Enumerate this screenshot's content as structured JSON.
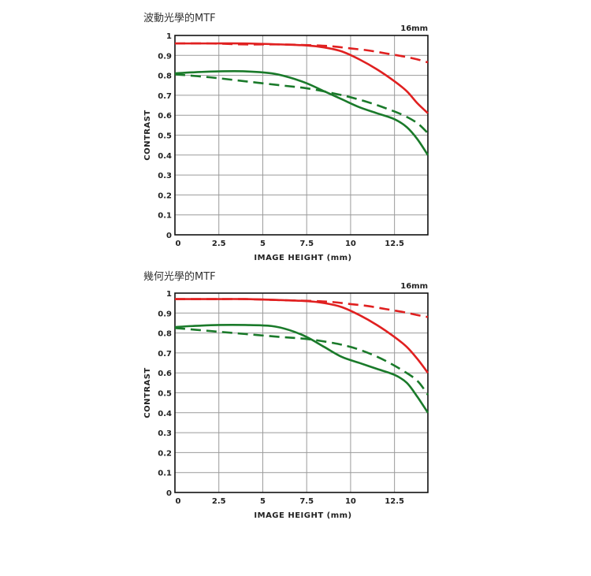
{
  "chart_data": [
    {
      "type": "line",
      "title": "波動光學的MTF",
      "corner_label": "16mm",
      "xlabel": "IMAGE HEIGHT (mm)",
      "ylabel": "CONTRAST",
      "xlim": [
        0,
        14.4
      ],
      "ylim": [
        0,
        1
      ],
      "x_ticks": [
        "0",
        "2.5",
        "5",
        "7.5",
        "10",
        "12.5"
      ],
      "x_tick_values": [
        0,
        2.5,
        5,
        7.5,
        10,
        12.5
      ],
      "y_ticks": [
        "0",
        "0.1",
        "0.2",
        "0.3",
        "0.4",
        "0.5",
        "0.6",
        "0.7",
        "0.8",
        "0.9",
        "1"
      ],
      "y_tick_values": [
        0,
        0.1,
        0.2,
        0.3,
        0.4,
        0.5,
        0.6,
        0.7,
        0.8,
        0.9,
        1
      ],
      "grid": true,
      "series": [
        {
          "color": "#e02020",
          "dash": false,
          "x": [
            0,
            2,
            4,
            6,
            7.5,
            8.5,
            9.5,
            10.5,
            11.5,
            12.5,
            13.2,
            13.8,
            14.4
          ],
          "y": [
            0.96,
            0.96,
            0.96,
            0.955,
            0.95,
            0.94,
            0.92,
            0.88,
            0.83,
            0.77,
            0.72,
            0.66,
            0.61
          ]
        },
        {
          "color": "#e02020",
          "dash": true,
          "x": [
            0,
            2,
            4,
            6,
            8,
            9,
            10,
            11,
            12,
            13,
            13.8,
            14.4
          ],
          "y": [
            0.96,
            0.96,
            0.955,
            0.955,
            0.95,
            0.945,
            0.935,
            0.925,
            0.91,
            0.895,
            0.88,
            0.865
          ]
        },
        {
          "color": "#1a7a2a",
          "dash": false,
          "x": [
            0,
            1,
            2.5,
            4,
            5.5,
            6.5,
            7.5,
            8.5,
            9.5,
            10.5,
            11.5,
            12.5,
            13.2,
            13.8,
            14.4
          ],
          "y": [
            0.81,
            0.815,
            0.82,
            0.82,
            0.81,
            0.79,
            0.76,
            0.72,
            0.68,
            0.64,
            0.61,
            0.58,
            0.54,
            0.48,
            0.4
          ]
        },
        {
          "color": "#1a7a2a",
          "dash": true,
          "x": [
            0,
            2,
            4,
            6,
            7.5,
            9,
            10,
            11,
            12,
            13,
            13.8,
            14.4
          ],
          "y": [
            0.805,
            0.79,
            0.77,
            0.75,
            0.735,
            0.71,
            0.69,
            0.665,
            0.635,
            0.6,
            0.56,
            0.51
          ]
        }
      ]
    },
    {
      "type": "line",
      "title": "幾何光學的MTF",
      "corner_label": "16mm",
      "xlabel": "IMAGE HEIGHT (mm)",
      "ylabel": "CONTRAST",
      "xlim": [
        0,
        14.4
      ],
      "ylim": [
        0,
        1
      ],
      "x_ticks": [
        "0",
        "2.5",
        "5",
        "7.5",
        "10",
        "12.5"
      ],
      "x_tick_values": [
        0,
        2.5,
        5,
        7.5,
        10,
        12.5
      ],
      "y_ticks": [
        "0",
        "0.1",
        "0.2",
        "0.3",
        "0.4",
        "0.5",
        "0.6",
        "0.7",
        "0.8",
        "0.9",
        "1"
      ],
      "y_tick_values": [
        0,
        0.1,
        0.2,
        0.3,
        0.4,
        0.5,
        0.6,
        0.7,
        0.8,
        0.9,
        1
      ],
      "grid": true,
      "series": [
        {
          "color": "#e02020",
          "dash": false,
          "x": [
            0,
            2,
            4,
            6,
            7.5,
            8.5,
            9.5,
            10.5,
            11.5,
            12.5,
            13.2,
            13.8,
            14.4
          ],
          "y": [
            0.97,
            0.97,
            0.97,
            0.965,
            0.96,
            0.95,
            0.93,
            0.89,
            0.84,
            0.78,
            0.73,
            0.67,
            0.6
          ]
        },
        {
          "color": "#e02020",
          "dash": true,
          "x": [
            0,
            2,
            4,
            6,
            8,
            9,
            10,
            11,
            12,
            13,
            13.8,
            14.4
          ],
          "y": [
            0.97,
            0.97,
            0.97,
            0.965,
            0.96,
            0.955,
            0.945,
            0.935,
            0.92,
            0.905,
            0.89,
            0.88
          ]
        },
        {
          "color": "#1a7a2a",
          "dash": false,
          "x": [
            0,
            1,
            2.5,
            4,
            5.5,
            6.5,
            7.5,
            8.5,
            9.5,
            10.5,
            11.5,
            12.5,
            13.2,
            13.8,
            14.4
          ],
          "y": [
            0.83,
            0.835,
            0.84,
            0.84,
            0.835,
            0.815,
            0.78,
            0.73,
            0.68,
            0.65,
            0.62,
            0.59,
            0.55,
            0.48,
            0.4
          ]
        },
        {
          "color": "#1a7a2a",
          "dash": true,
          "x": [
            0,
            2,
            4,
            6,
            7.5,
            9,
            10,
            11,
            12,
            13,
            13.8,
            14.4
          ],
          "y": [
            0.825,
            0.81,
            0.795,
            0.78,
            0.77,
            0.75,
            0.73,
            0.7,
            0.66,
            0.61,
            0.56,
            0.49
          ]
        }
      ]
    }
  ]
}
